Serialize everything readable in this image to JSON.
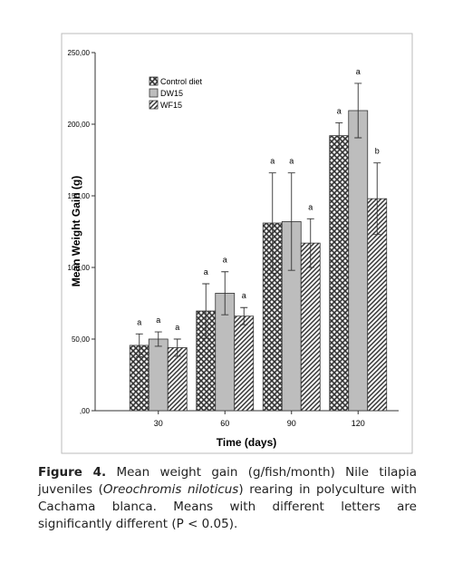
{
  "chart_data": {
    "type": "bar",
    "y_label": "Mean Weight Gain (g)",
    "x_label": "Time (days)",
    "categories": [
      "30",
      "60",
      "90",
      "120"
    ],
    "ylim": [
      0,
      250
    ],
    "yticks": [
      {
        "value": 0,
        "label": ",00"
      },
      {
        "value": 50,
        "label": "50,00"
      },
      {
        "value": 100,
        "label": "100,00"
      },
      {
        "value": 150,
        "label": "150,00"
      },
      {
        "value": 200,
        "label": "200,00"
      },
      {
        "value": 250,
        "label": "250,00"
      }
    ],
    "series": [
      {
        "name": "Control diet",
        "color": "#333333",
        "pattern": "crosshatch",
        "values": [
          45.6,
          69.6,
          131,
          192
        ],
        "errors": [
          8,
          19,
          35,
          9
        ],
        "letters": [
          "a",
          "a",
          "a",
          "a"
        ]
      },
      {
        "name": "DW15",
        "color": "#bdbdbd",
        "pattern": "solid",
        "values": [
          50,
          82,
          132,
          209.5
        ],
        "errors": [
          5,
          15,
          34,
          19
        ],
        "letters": [
          "a",
          "a",
          "a",
          "a"
        ]
      },
      {
        "name": "WF15",
        "color": "#333333",
        "pattern": "diagonal",
        "values": [
          44,
          66,
          117,
          148
        ],
        "errors": [
          6,
          6,
          17,
          25
        ],
        "letters": [
          "a",
          "a",
          "a",
          "b"
        ]
      }
    ],
    "legend": "top-left"
  },
  "caption": {
    "label": "Figure 4.",
    "text_before": "Mean weight gain (g/fish/month) Nile tilapia juveniles (",
    "italic": "Oreochromis niloticus",
    "text_after": ") rearing in polyculture with Cachama blanca. Means with different letters are significantly different (P < 0.05)."
  }
}
